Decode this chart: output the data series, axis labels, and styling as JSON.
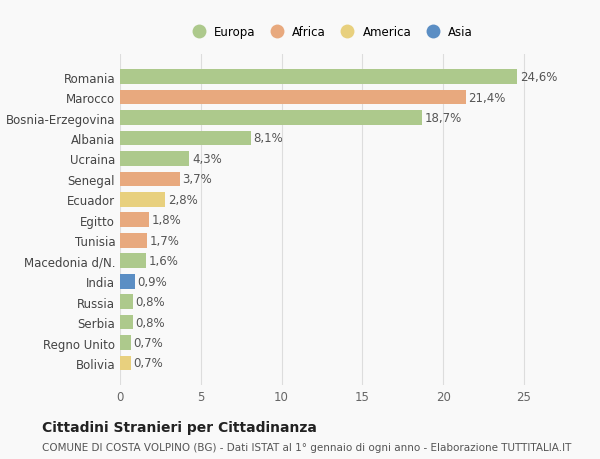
{
  "countries": [
    "Romania",
    "Marocco",
    "Bosnia-Erzegovina",
    "Albania",
    "Ucraina",
    "Senegal",
    "Ecuador",
    "Egitto",
    "Tunisia",
    "Macedonia d/N.",
    "India",
    "Russia",
    "Serbia",
    "Regno Unito",
    "Bolivia"
  ],
  "values": [
    24.6,
    21.4,
    18.7,
    8.1,
    4.3,
    3.7,
    2.8,
    1.8,
    1.7,
    1.6,
    0.9,
    0.8,
    0.8,
    0.7,
    0.7
  ],
  "labels": [
    "24,6%",
    "21,4%",
    "18,7%",
    "8,1%",
    "4,3%",
    "3,7%",
    "2,8%",
    "1,8%",
    "1,7%",
    "1,6%",
    "0,9%",
    "0,8%",
    "0,8%",
    "0,7%",
    "0,7%"
  ],
  "continents": [
    "Europa",
    "Africa",
    "Europa",
    "Europa",
    "Europa",
    "Africa",
    "America",
    "Africa",
    "Africa",
    "Europa",
    "Asia",
    "Europa",
    "Europa",
    "Europa",
    "America"
  ],
  "continent_colors": {
    "Europa": "#adc98c",
    "Africa": "#e8a97e",
    "America": "#e8d07e",
    "Asia": "#5b8ec4"
  },
  "legend_order": [
    "Europa",
    "Africa",
    "America",
    "Asia"
  ],
  "title": "Cittadini Stranieri per Cittadinanza",
  "subtitle": "COMUNE DI COSTA VOLPINO (BG) - Dati ISTAT al 1° gennaio di ogni anno - Elaborazione TUTTITALIA.IT",
  "xlim": [
    0,
    26
  ],
  "background_color": "#f9f9f9",
  "grid_color": "#dddddd",
  "bar_height": 0.72,
  "label_fontsize": 8.5,
  "tick_fontsize": 8.5,
  "title_fontsize": 10,
  "subtitle_fontsize": 7.5
}
